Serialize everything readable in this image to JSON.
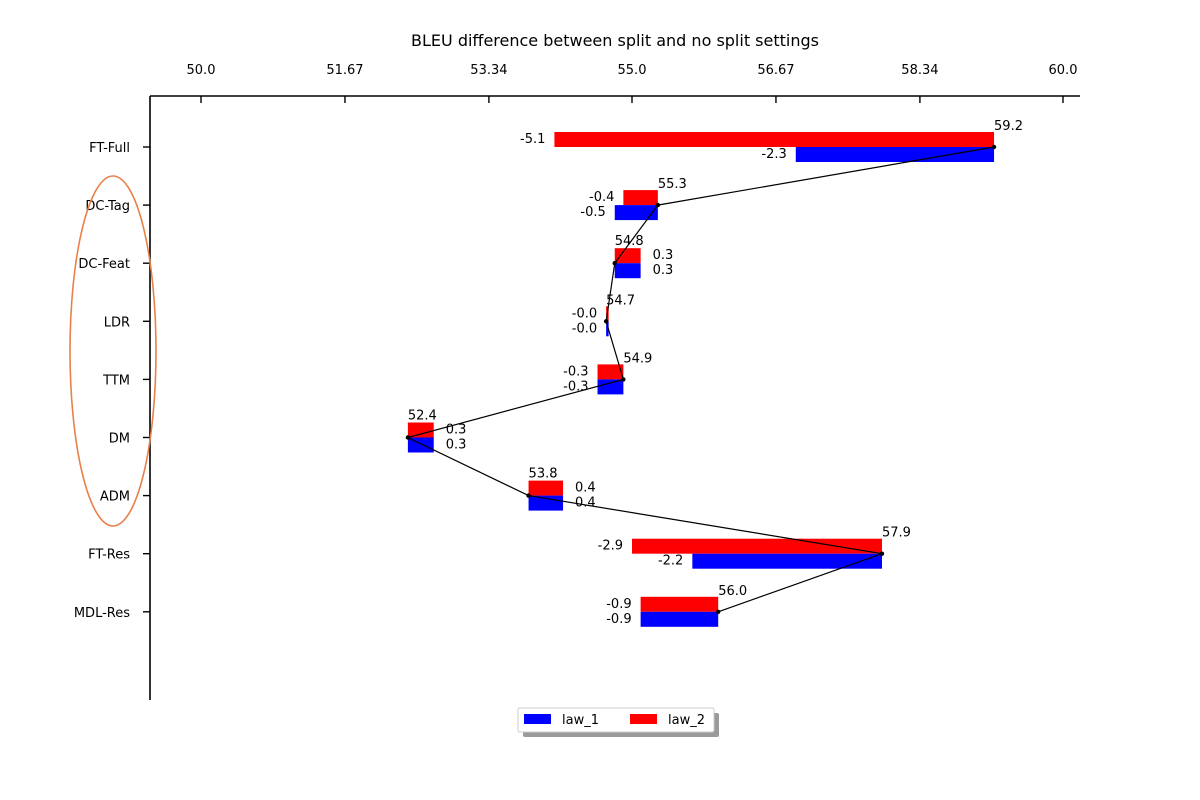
{
  "chart_data": {
    "type": "bar",
    "orientation": "horizontal",
    "title": "BLEU difference between split and no split settings",
    "xlim": [
      49.42,
      60.2
    ],
    "x_ticks": [
      50.0,
      51.67,
      53.34,
      55.0,
      56.67,
      58.34,
      60.0
    ],
    "x_tick_labels": [
      "50.0",
      "51.67",
      "53.34",
      "55.0",
      "56.67",
      "58.34",
      "60.0"
    ],
    "x_axis_position": "top",
    "categories": [
      "FT-Full",
      "DC-Tag",
      "DC-Feat",
      "LDR",
      "TTM",
      "DM",
      "ADM",
      "FT-Res",
      "MDL-Res"
    ],
    "baseline_scores": [
      59.2,
      55.3,
      54.8,
      54.7,
      54.9,
      52.4,
      53.8,
      57.9,
      56.0
    ],
    "baseline_labels": [
      "59.2",
      "55.3",
      "54.8",
      "54.7",
      "54.9",
      "52.4",
      "53.8",
      "57.9",
      "56.0"
    ],
    "series": [
      {
        "name": "law_1",
        "color": "#0000ff",
        "values": [
          -2.3,
          -0.5,
          0.3,
          -0.0,
          -0.3,
          0.3,
          0.4,
          -2.2,
          -0.9
        ],
        "labels": [
          "-2.3",
          "-0.5",
          "0.3",
          "-0.0",
          "-0.3",
          "0.3",
          "0.4",
          "-2.2",
          "-0.9"
        ]
      },
      {
        "name": "law_2",
        "color": "#ff0000",
        "values": [
          -5.1,
          -0.4,
          0.3,
          -0.0,
          -0.3,
          0.3,
          0.4,
          -2.9,
          -0.9
        ],
        "labels": [
          "-5.1",
          "-0.4",
          "0.3",
          "-0.0",
          "-0.3",
          "0.3",
          "0.4",
          "-2.9",
          "-0.9"
        ]
      }
    ],
    "legend_placement": "bottom-center",
    "annotation": {
      "shape": "ellipse",
      "color": "#e8804a",
      "encloses": [
        "DC-Tag",
        "DC-Feat",
        "LDR",
        "TTM",
        "DM",
        "ADM"
      ]
    },
    "grid": false
  }
}
